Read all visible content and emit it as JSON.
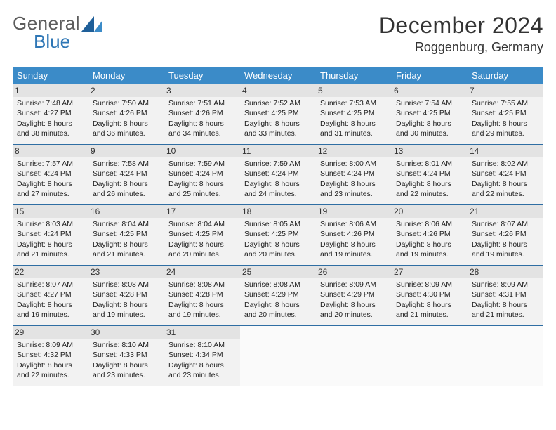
{
  "logo": {
    "word1": "General",
    "word2": "Blue",
    "accent_color": "#2f77b6",
    "text_color": "#5c5c5c"
  },
  "header": {
    "month_title": "December 2024",
    "location": "Roggenburg, Germany"
  },
  "day_headers": [
    "Sunday",
    "Monday",
    "Tuesday",
    "Wednesday",
    "Thursday",
    "Friday",
    "Saturday"
  ],
  "colors": {
    "header_bg": "#3b8bc8",
    "header_fg": "#ffffff",
    "cell_bg": "#f2f2f2",
    "daynum_bg": "#e3e3e3",
    "row_border": "#2f6ea3",
    "empty_bg": "#fafafa"
  },
  "weeks": [
    [
      {
        "n": "1",
        "sunrise": "Sunrise: 7:48 AM",
        "sunset": "Sunset: 4:27 PM",
        "day": "Daylight: 8 hours and 38 minutes."
      },
      {
        "n": "2",
        "sunrise": "Sunrise: 7:50 AM",
        "sunset": "Sunset: 4:26 PM",
        "day": "Daylight: 8 hours and 36 minutes."
      },
      {
        "n": "3",
        "sunrise": "Sunrise: 7:51 AM",
        "sunset": "Sunset: 4:26 PM",
        "day": "Daylight: 8 hours and 34 minutes."
      },
      {
        "n": "4",
        "sunrise": "Sunrise: 7:52 AM",
        "sunset": "Sunset: 4:25 PM",
        "day": "Daylight: 8 hours and 33 minutes."
      },
      {
        "n": "5",
        "sunrise": "Sunrise: 7:53 AM",
        "sunset": "Sunset: 4:25 PM",
        "day": "Daylight: 8 hours and 31 minutes."
      },
      {
        "n": "6",
        "sunrise": "Sunrise: 7:54 AM",
        "sunset": "Sunset: 4:25 PM",
        "day": "Daylight: 8 hours and 30 minutes."
      },
      {
        "n": "7",
        "sunrise": "Sunrise: 7:55 AM",
        "sunset": "Sunset: 4:25 PM",
        "day": "Daylight: 8 hours and 29 minutes."
      }
    ],
    [
      {
        "n": "8",
        "sunrise": "Sunrise: 7:57 AM",
        "sunset": "Sunset: 4:24 PM",
        "day": "Daylight: 8 hours and 27 minutes."
      },
      {
        "n": "9",
        "sunrise": "Sunrise: 7:58 AM",
        "sunset": "Sunset: 4:24 PM",
        "day": "Daylight: 8 hours and 26 minutes."
      },
      {
        "n": "10",
        "sunrise": "Sunrise: 7:59 AM",
        "sunset": "Sunset: 4:24 PM",
        "day": "Daylight: 8 hours and 25 minutes."
      },
      {
        "n": "11",
        "sunrise": "Sunrise: 7:59 AM",
        "sunset": "Sunset: 4:24 PM",
        "day": "Daylight: 8 hours and 24 minutes."
      },
      {
        "n": "12",
        "sunrise": "Sunrise: 8:00 AM",
        "sunset": "Sunset: 4:24 PM",
        "day": "Daylight: 8 hours and 23 minutes."
      },
      {
        "n": "13",
        "sunrise": "Sunrise: 8:01 AM",
        "sunset": "Sunset: 4:24 PM",
        "day": "Daylight: 8 hours and 22 minutes."
      },
      {
        "n": "14",
        "sunrise": "Sunrise: 8:02 AM",
        "sunset": "Sunset: 4:24 PM",
        "day": "Daylight: 8 hours and 22 minutes."
      }
    ],
    [
      {
        "n": "15",
        "sunrise": "Sunrise: 8:03 AM",
        "sunset": "Sunset: 4:24 PM",
        "day": "Daylight: 8 hours and 21 minutes."
      },
      {
        "n": "16",
        "sunrise": "Sunrise: 8:04 AM",
        "sunset": "Sunset: 4:25 PM",
        "day": "Daylight: 8 hours and 21 minutes."
      },
      {
        "n": "17",
        "sunrise": "Sunrise: 8:04 AM",
        "sunset": "Sunset: 4:25 PM",
        "day": "Daylight: 8 hours and 20 minutes."
      },
      {
        "n": "18",
        "sunrise": "Sunrise: 8:05 AM",
        "sunset": "Sunset: 4:25 PM",
        "day": "Daylight: 8 hours and 20 minutes."
      },
      {
        "n": "19",
        "sunrise": "Sunrise: 8:06 AM",
        "sunset": "Sunset: 4:26 PM",
        "day": "Daylight: 8 hours and 19 minutes."
      },
      {
        "n": "20",
        "sunrise": "Sunrise: 8:06 AM",
        "sunset": "Sunset: 4:26 PM",
        "day": "Daylight: 8 hours and 19 minutes."
      },
      {
        "n": "21",
        "sunrise": "Sunrise: 8:07 AM",
        "sunset": "Sunset: 4:26 PM",
        "day": "Daylight: 8 hours and 19 minutes."
      }
    ],
    [
      {
        "n": "22",
        "sunrise": "Sunrise: 8:07 AM",
        "sunset": "Sunset: 4:27 PM",
        "day": "Daylight: 8 hours and 19 minutes."
      },
      {
        "n": "23",
        "sunrise": "Sunrise: 8:08 AM",
        "sunset": "Sunset: 4:28 PM",
        "day": "Daylight: 8 hours and 19 minutes."
      },
      {
        "n": "24",
        "sunrise": "Sunrise: 8:08 AM",
        "sunset": "Sunset: 4:28 PM",
        "day": "Daylight: 8 hours and 19 minutes."
      },
      {
        "n": "25",
        "sunrise": "Sunrise: 8:08 AM",
        "sunset": "Sunset: 4:29 PM",
        "day": "Daylight: 8 hours and 20 minutes."
      },
      {
        "n": "26",
        "sunrise": "Sunrise: 8:09 AM",
        "sunset": "Sunset: 4:29 PM",
        "day": "Daylight: 8 hours and 20 minutes."
      },
      {
        "n": "27",
        "sunrise": "Sunrise: 8:09 AM",
        "sunset": "Sunset: 4:30 PM",
        "day": "Daylight: 8 hours and 21 minutes."
      },
      {
        "n": "28",
        "sunrise": "Sunrise: 8:09 AM",
        "sunset": "Sunset: 4:31 PM",
        "day": "Daylight: 8 hours and 21 minutes."
      }
    ],
    [
      {
        "n": "29",
        "sunrise": "Sunrise: 8:09 AM",
        "sunset": "Sunset: 4:32 PM",
        "day": "Daylight: 8 hours and 22 minutes."
      },
      {
        "n": "30",
        "sunrise": "Sunrise: 8:10 AM",
        "sunset": "Sunset: 4:33 PM",
        "day": "Daylight: 8 hours and 23 minutes."
      },
      {
        "n": "31",
        "sunrise": "Sunrise: 8:10 AM",
        "sunset": "Sunset: 4:34 PM",
        "day": "Daylight: 8 hours and 23 minutes."
      },
      {
        "empty": true
      },
      {
        "empty": true
      },
      {
        "empty": true
      },
      {
        "empty": true
      }
    ]
  ]
}
